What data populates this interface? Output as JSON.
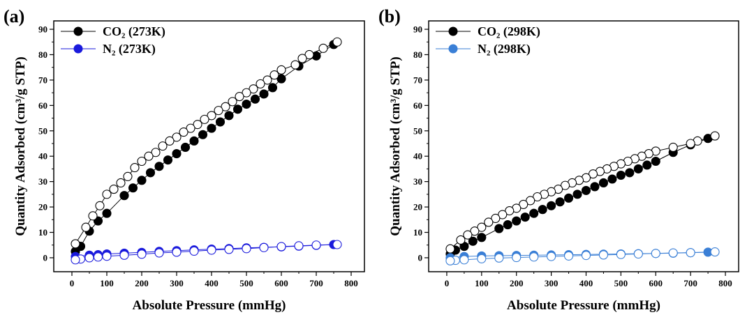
{
  "chart_data": [
    {
      "type": "scatter",
      "label": "(a)",
      "xlabel": "Absolute Pressure (mmHg)",
      "ylabel": "Quantity Adsorbed (cm³/g STP)",
      "xlim": [
        -52,
        838
      ],
      "ylim": [
        -5.5,
        93.3
      ],
      "xticks": [
        0,
        100,
        200,
        300,
        400,
        500,
        600,
        700,
        800
      ],
      "yticks": [
        0,
        10,
        20,
        30,
        40,
        50,
        60,
        70,
        80,
        90
      ],
      "series": [
        {
          "name": "CO₂ (273K)",
          "color": "#000000",
          "x": [
            10,
            25,
            50,
            75,
            100,
            150,
            175,
            200,
            225,
            250,
            275,
            300,
            325,
            350,
            375,
            400,
            425,
            450,
            475,
            500,
            525,
            550,
            575,
            600,
            650,
            700,
            750
          ],
          "values": [
            2.5,
            4.5,
            10.5,
            14.5,
            17.5,
            24.5,
            27.5,
            30.5,
            33.5,
            36,
            38.5,
            41,
            43.5,
            46,
            48.5,
            51,
            53.5,
            56,
            58.5,
            60.5,
            62.5,
            64.5,
            67,
            70.5,
            75.5,
            79.5,
            84
          ],
          "desorption_x": [
            760,
            720,
            680,
            660,
            640,
            600,
            580,
            560,
            540,
            520,
            500,
            480,
            460,
            440,
            420,
            400,
            380,
            360,
            340,
            320,
            300,
            280,
            260,
            240,
            220,
            200,
            180,
            160,
            140,
            120,
            100,
            80,
            60,
            40,
            10
          ],
          "desorption_values": [
            85,
            82.5,
            80,
            78.5,
            76,
            74,
            72,
            70,
            68.5,
            66.5,
            65,
            63.5,
            61.5,
            59.5,
            58,
            56,
            54.5,
            52.5,
            51,
            49.5,
            47.5,
            46,
            44,
            41.5,
            40,
            38,
            35.5,
            32,
            29.5,
            27,
            25,
            20.5,
            16.5,
            12,
            5.5
          ]
        },
        {
          "name": "N₂    (273K)",
          "color": "#1a1adc",
          "x": [
            10,
            50,
            75,
            100,
            150,
            200,
            250,
            300,
            350,
            400,
            450,
            500,
            550,
            600,
            650,
            700,
            750
          ],
          "values": [
            0.5,
            1,
            1.2,
            1.5,
            1.8,
            2.1,
            2.5,
            2.8,
            3.1,
            3.4,
            3.6,
            3.9,
            4.1,
            4.3,
            4.6,
            4.9,
            5.2
          ],
          "desorption_x": [
            760,
            700,
            650,
            600,
            550,
            500,
            450,
            400,
            350,
            300,
            250,
            200,
            150,
            100,
            75,
            50,
            25,
            10
          ],
          "desorption_values": [
            5.2,
            5,
            4.7,
            4.4,
            4,
            3.6,
            3.3,
            3,
            2.6,
            2.2,
            1.9,
            1.4,
            1,
            0.6,
            0.3,
            0,
            -0.5,
            -0.8
          ]
        }
      ]
    },
    {
      "type": "scatter",
      "label": "(b)",
      "xlabel": "Absolute Pressure (mmHg)",
      "ylabel": "Quantity Adsorbed (cm³/g STP)",
      "xlim": [
        -52,
        838
      ],
      "ylim": [
        -5.5,
        93.3
      ],
      "xticks": [
        0,
        100,
        200,
        300,
        400,
        500,
        600,
        700,
        800
      ],
      "yticks": [
        0,
        10,
        20,
        30,
        40,
        50,
        60,
        70,
        80,
        90
      ],
      "series": [
        {
          "name": "CO₂ (298K)",
          "color": "#000000",
          "x": [
            10,
            25,
            50,
            75,
            100,
            150,
            175,
            200,
            225,
            250,
            275,
            300,
            325,
            350,
            375,
            400,
            425,
            450,
            475,
            500,
            525,
            550,
            575,
            600,
            650,
            700,
            750
          ],
          "values": [
            1.5,
            3,
            4.5,
            6.5,
            8,
            11.5,
            13,
            14.5,
            16,
            17.5,
            19,
            20.5,
            22,
            23.5,
            25,
            26.5,
            28,
            29.5,
            31,
            32.5,
            33.5,
            35,
            36.5,
            38,
            41.5,
            44.5,
            47
          ],
          "desorption_x": [
            770,
            720,
            700,
            650,
            600,
            580,
            560,
            540,
            520,
            500,
            480,
            460,
            440,
            420,
            400,
            380,
            360,
            340,
            320,
            300,
            280,
            260,
            240,
            220,
            200,
            180,
            160,
            140,
            120,
            100,
            80,
            60,
            40,
            10
          ],
          "desorption_values": [
            48,
            46,
            45,
            43.5,
            42,
            41,
            40,
            39,
            38,
            37,
            36,
            35,
            34,
            33,
            31.5,
            30.5,
            29.5,
            28.5,
            27,
            26,
            25,
            24,
            22.5,
            21,
            19.5,
            18.5,
            17,
            15.5,
            14,
            12,
            10.5,
            9,
            7,
            3.5
          ]
        },
        {
          "name": "N₂    (298K)",
          "color": "#3a7fd6",
          "x": [
            10,
            50,
            100,
            150,
            200,
            250,
            300,
            350,
            400,
            450,
            500,
            550,
            600,
            650,
            700,
            750
          ],
          "values": [
            0,
            0.5,
            0.7,
            0.8,
            0.9,
            1,
            1.1,
            1.2,
            1.3,
            1.4,
            1.5,
            1.6,
            1.7,
            1.8,
            2,
            2.2
          ],
          "desorption_x": [
            770,
            700,
            650,
            600,
            550,
            500,
            450,
            400,
            350,
            300,
            250,
            200,
            150,
            100,
            50,
            25,
            10
          ],
          "desorption_values": [
            2.3,
            2,
            1.9,
            1.7,
            1.5,
            1.3,
            1.1,
            0.9,
            0.7,
            0.5,
            0.3,
            0.1,
            -0.1,
            -0.4,
            -0.8,
            -1,
            -1.2
          ]
        }
      ]
    }
  ]
}
